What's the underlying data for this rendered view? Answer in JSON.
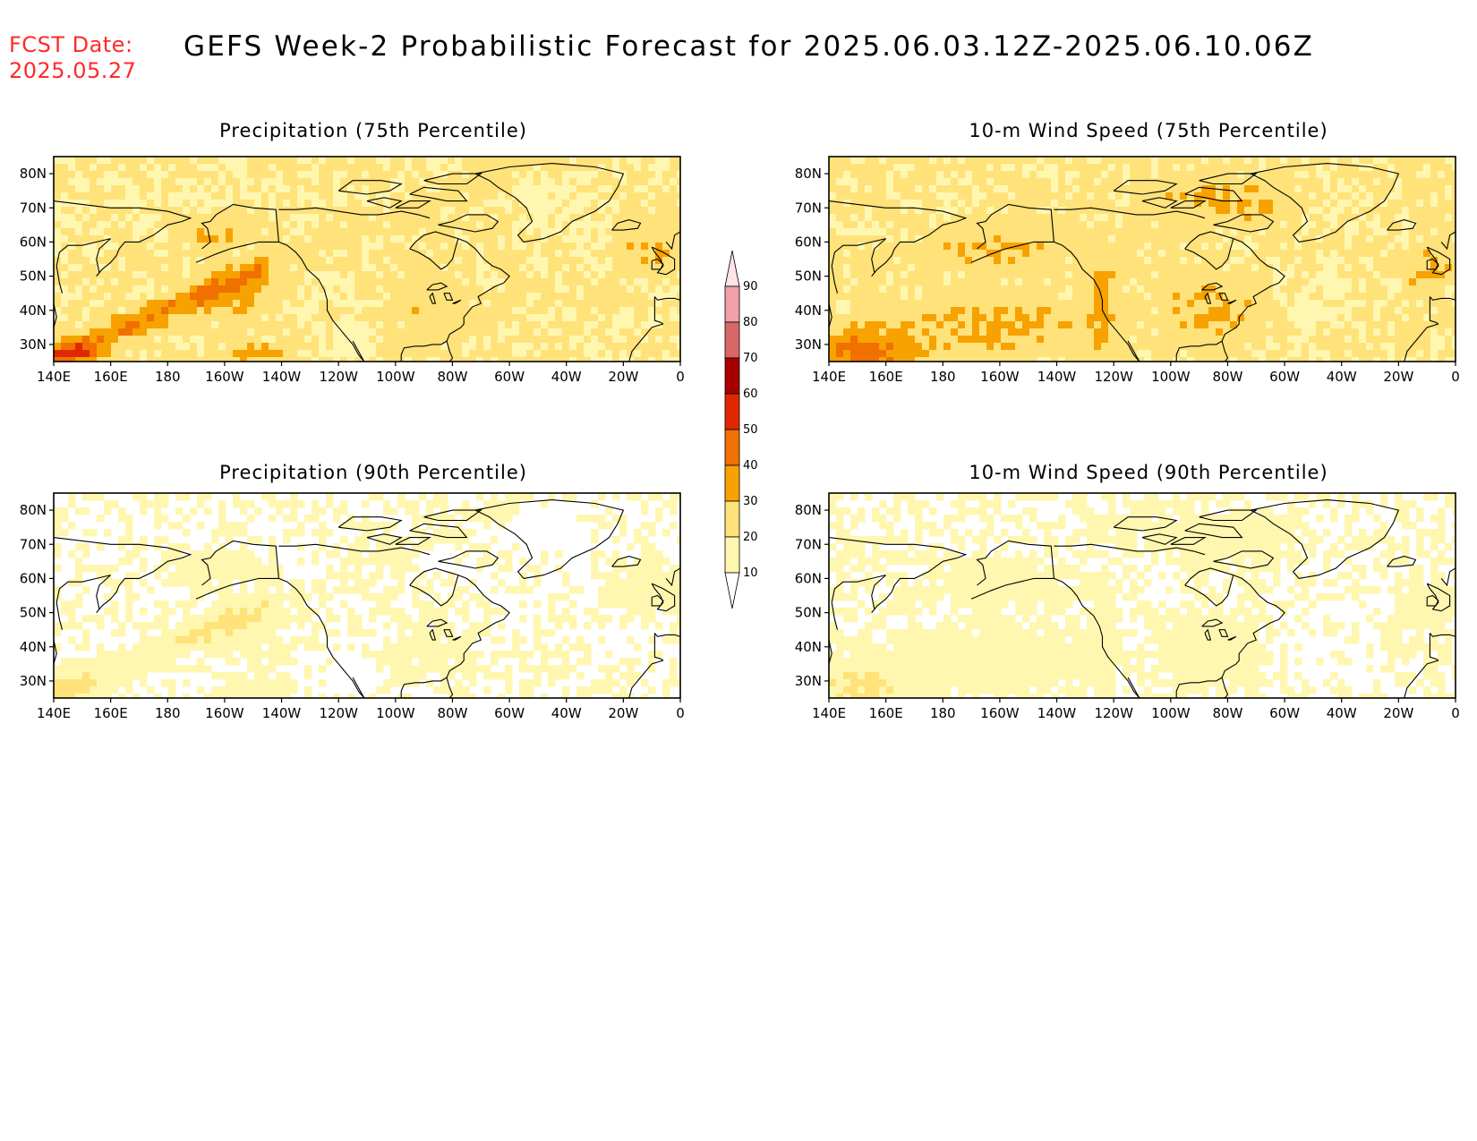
{
  "fcst_date": {
    "label": "FCST Date:",
    "value": "2025.05.27"
  },
  "title": "GEFS Week-2 Probabilistic Forecast for 2025.06.03.12Z-2025.06.10.06Z",
  "colorbar": {
    "levels": [
      10,
      20,
      30,
      40,
      50,
      60,
      70,
      80,
      90
    ],
    "labels": [
      "10",
      "20",
      "30",
      "40",
      "50",
      "60",
      "70",
      "80",
      "90"
    ],
    "colors": [
      "#ffffff",
      "#fff7b0",
      "#ffe27a",
      "#f7a200",
      "#f07000",
      "#e02800",
      "#a80000",
      "#d86868",
      "#f0a0a8",
      "#fde4e6"
    ]
  },
  "axes": {
    "x_ticks": [
      "140E",
      "160E",
      "180",
      "160W",
      "140W",
      "120W",
      "100W",
      "80W",
      "60W",
      "40W",
      "20W",
      "0"
    ],
    "y_ticks": [
      "30N",
      "40N",
      "50N",
      "60N",
      "70N",
      "80N"
    ],
    "lon_range": [
      140,
      360
    ],
    "lat_range": [
      25,
      85
    ]
  },
  "panels": [
    {
      "id": "precip75",
      "title": "Precipitation (75th Percentile)",
      "intensity": "high",
      "variable": "precip"
    },
    {
      "id": "wind75",
      "title": "10-m Wind Speed (75th Percentile)",
      "intensity": "high",
      "variable": "wind"
    },
    {
      "id": "precip90",
      "title": "Precipitation (90th Percentile)",
      "intensity": "low",
      "variable": "precip"
    },
    {
      "id": "wind90",
      "title": "10-m Wind Speed (90th Percentile)",
      "intensity": "low",
      "variable": "wind"
    }
  ]
}
